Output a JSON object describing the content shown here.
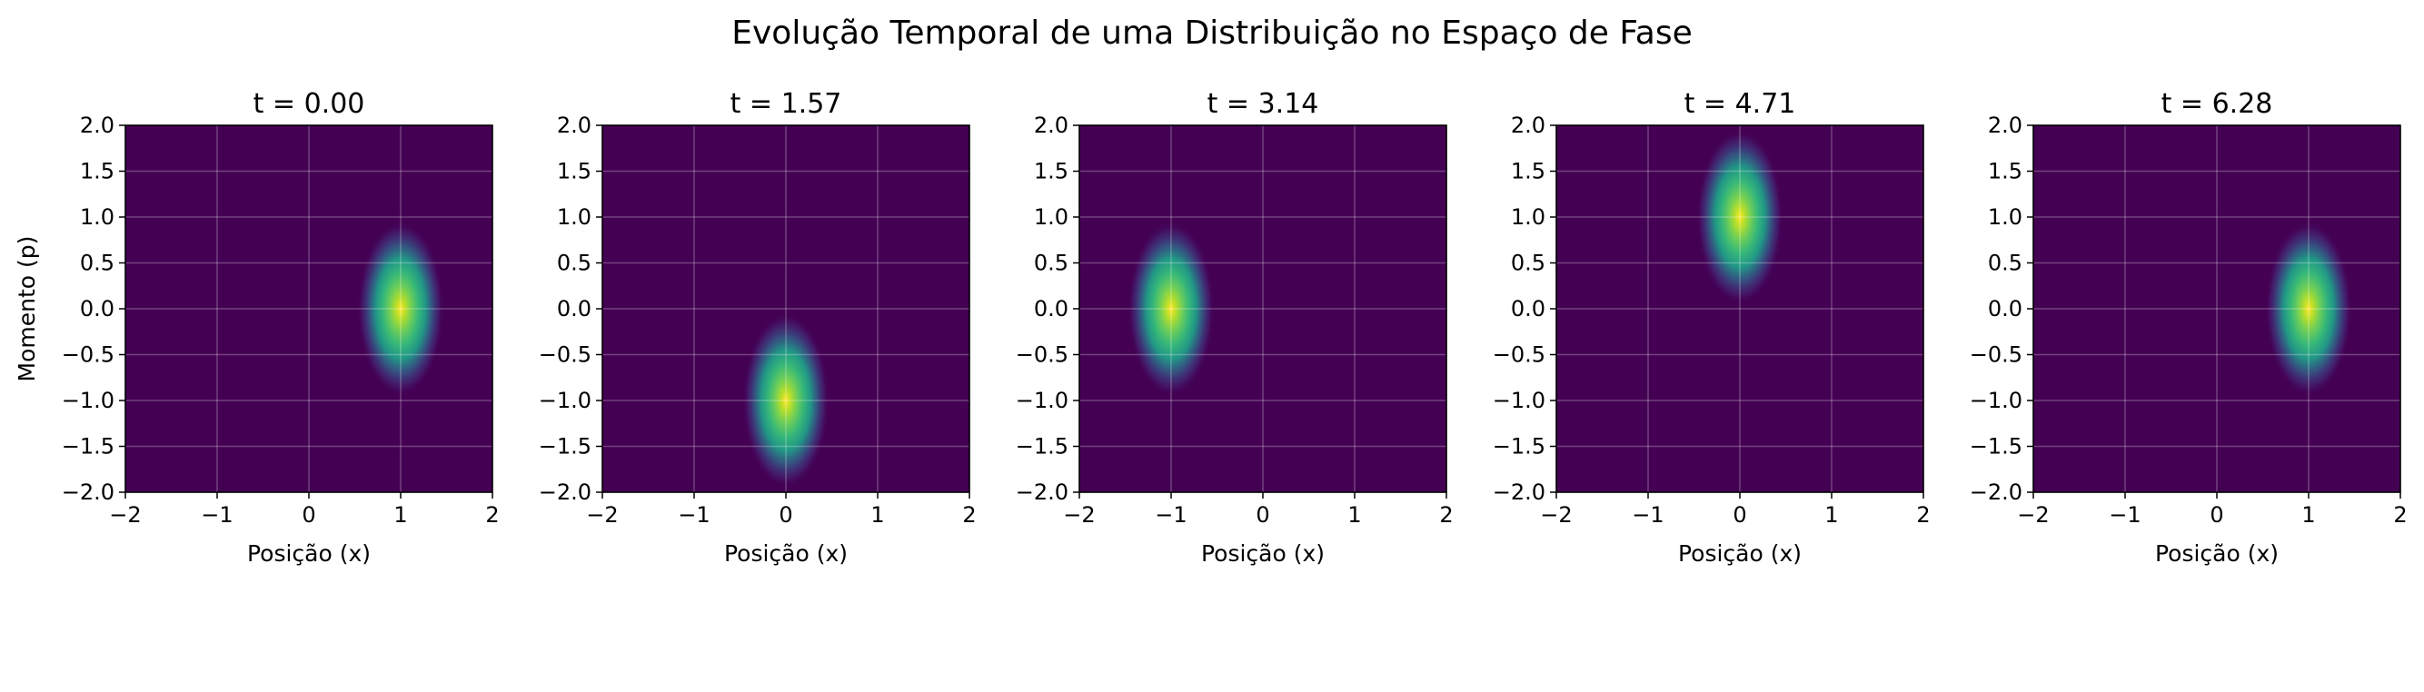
{
  "suptitle": "Evolução Temporal de uma Distribuição no Espaço de Fase",
  "colors": {
    "background": "#440154",
    "peak": "#fde725",
    "grid": "#ffffff",
    "axis": "#000000"
  },
  "chart_data": [
    {
      "type": "heatmap",
      "title": "t = 0.00",
      "xlabel": "Posição (x)",
      "ylabel": "Momento (p)",
      "xlim": [
        -2,
        2
      ],
      "ylim": [
        -2,
        2
      ],
      "xticks": [
        -2,
        -1,
        0,
        1,
        2
      ],
      "yticks": [
        -2.0,
        -1.5,
        -1.0,
        -0.5,
        0.0,
        0.5,
        1.0,
        1.5,
        2.0
      ],
      "xtick_labels": [
        "−2",
        "−1",
        "0",
        "1",
        "2"
      ],
      "ytick_labels": [
        "−2.0",
        "−1.5",
        "−1.0",
        "−0.5",
        "0.0",
        "0.5",
        "1.0",
        "1.5",
        "2.0"
      ],
      "grid": true,
      "colormap": "viridis",
      "center": {
        "x": 1,
        "p": 0
      }
    },
    {
      "type": "heatmap",
      "title": "t = 1.57",
      "xlabel": "Posição (x)",
      "ylabel": "",
      "xlim": [
        -2,
        2
      ],
      "ylim": [
        -2,
        2
      ],
      "xticks": [
        -2,
        -1,
        0,
        1,
        2
      ],
      "yticks": [
        -2.0,
        -1.5,
        -1.0,
        -0.5,
        0.0,
        0.5,
        1.0,
        1.5,
        2.0
      ],
      "xtick_labels": [
        "−2",
        "−1",
        "0",
        "1",
        "2"
      ],
      "ytick_labels": [
        "−2.0",
        "−1.5",
        "−1.0",
        "−0.5",
        "0.0",
        "0.5",
        "1.0",
        "1.5",
        "2.0"
      ],
      "grid": true,
      "colormap": "viridis",
      "center": {
        "x": 0,
        "p": -1
      }
    },
    {
      "type": "heatmap",
      "title": "t = 3.14",
      "xlabel": "Posição (x)",
      "ylabel": "",
      "xlim": [
        -2,
        2
      ],
      "ylim": [
        -2,
        2
      ],
      "xticks": [
        -2,
        -1,
        0,
        1,
        2
      ],
      "yticks": [
        -2.0,
        -1.5,
        -1.0,
        -0.5,
        0.0,
        0.5,
        1.0,
        1.5,
        2.0
      ],
      "xtick_labels": [
        "−2",
        "−1",
        "0",
        "1",
        "2"
      ],
      "ytick_labels": [
        "−2.0",
        "−1.5",
        "−1.0",
        "−0.5",
        "0.0",
        "0.5",
        "1.0",
        "1.5",
        "2.0"
      ],
      "grid": true,
      "colormap": "viridis",
      "center": {
        "x": -1,
        "p": 0
      }
    },
    {
      "type": "heatmap",
      "title": "t = 4.71",
      "xlabel": "Posição (x)",
      "ylabel": "",
      "xlim": [
        -2,
        2
      ],
      "ylim": [
        -2,
        2
      ],
      "xticks": [
        -2,
        -1,
        0,
        1,
        2
      ],
      "yticks": [
        -2.0,
        -1.5,
        -1.0,
        -0.5,
        0.0,
        0.5,
        1.0,
        1.5,
        2.0
      ],
      "xtick_labels": [
        "−2",
        "−1",
        "0",
        "1",
        "2"
      ],
      "ytick_labels": [
        "−2.0",
        "−1.5",
        "−1.0",
        "−0.5",
        "0.0",
        "0.5",
        "1.0",
        "1.5",
        "2.0"
      ],
      "grid": true,
      "colormap": "viridis",
      "center": {
        "x": 0,
        "p": 1
      }
    },
    {
      "type": "heatmap",
      "title": "t = 6.28",
      "xlabel": "Posição (x)",
      "ylabel": "",
      "xlim": [
        -2,
        2
      ],
      "ylim": [
        -2,
        2
      ],
      "xticks": [
        -2,
        -1,
        0,
        1,
        2
      ],
      "yticks": [
        -2.0,
        -1.5,
        -1.0,
        -0.5,
        0.0,
        0.5,
        1.0,
        1.5,
        2.0
      ],
      "xtick_labels": [
        "−2",
        "−1",
        "0",
        "1",
        "2"
      ],
      "ytick_labels": [
        "−2.0",
        "−1.5",
        "−1.0",
        "−0.5",
        "0.0",
        "0.5",
        "1.0",
        "1.5",
        "2.0"
      ],
      "grid": true,
      "colormap": "viridis",
      "center": {
        "x": 1,
        "p": 0
      }
    }
  ]
}
